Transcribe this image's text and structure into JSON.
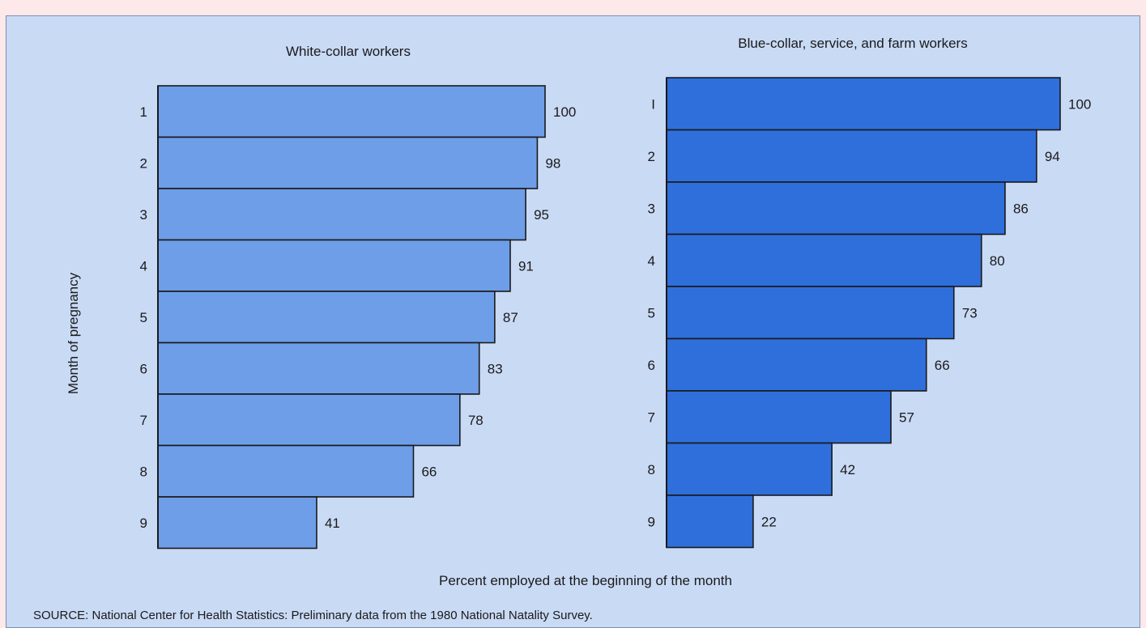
{
  "chart_data": [
    {
      "type": "bar",
      "orientation": "horizontal",
      "title": "White-collar workers",
      "categories": [
        "1",
        "2",
        "3",
        "4",
        "5",
        "6",
        "7",
        "8",
        "9"
      ],
      "values": [
        100,
        98,
        95,
        91,
        87,
        83,
        78,
        66,
        41
      ],
      "color": "#6e9ee8",
      "xlim": [
        0,
        100
      ]
    },
    {
      "type": "bar",
      "orientation": "horizontal",
      "title": "Blue-collar, service, and farm workers",
      "categories": [
        "I",
        "2",
        "3",
        "4",
        "5",
        "6",
        "7",
        "8",
        "9"
      ],
      "values": [
        100,
        94,
        86,
        80,
        73,
        66,
        57,
        42,
        22
      ],
      "color": "#2e6fdc",
      "xlim": [
        0,
        100
      ]
    }
  ],
  "ylabel": "Month of pregnancy",
  "xlabel": "Percent employed at the beginning of the month",
  "source": "SOURCE: National Center for Health Statistics: Preliminary data from the 1980 National Natality Survey."
}
